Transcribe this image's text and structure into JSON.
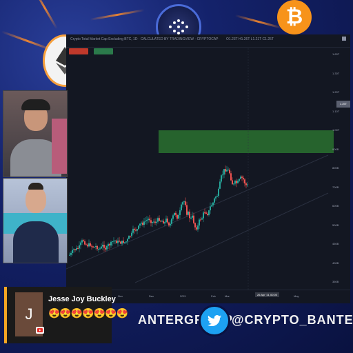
{
  "background": {
    "accent": "#f7931a",
    "base": "#14226b"
  },
  "chart": {
    "topbar_symbol": "Crypto Total Market Cap Excluding BTC, 1D · CALCULATED BY TRADINGVIEW · CRYPTOCAP",
    "topbar_ohlc": "O1.23T H1.26T L1.21T C1.25T",
    "price_ticks": [
      "1.60T",
      "1.30T",
      "1.20T",
      "1.10T",
      "1.00T",
      "900B",
      "800B",
      "700B",
      "600B",
      "500B",
      "450B",
      "400B",
      "350B"
    ],
    "current_price": "1.25T",
    "date_label": "26 Apr '21 00:00",
    "time_ticks": [
      "Oct",
      "Nov",
      "Dec",
      "2021",
      "Feb",
      "Mar",
      "Apr",
      "May"
    ],
    "zone_color": "#2e7d32"
  },
  "chat": {
    "author": "Jesse Joy Buckley",
    "avatar_letter": "J",
    "message": "😍😍😍😍😍😍😍"
  },
  "banner": {
    "group_text": "ANTERGROUP",
    "handle_text": "@CRYPTO_BANTER"
  }
}
